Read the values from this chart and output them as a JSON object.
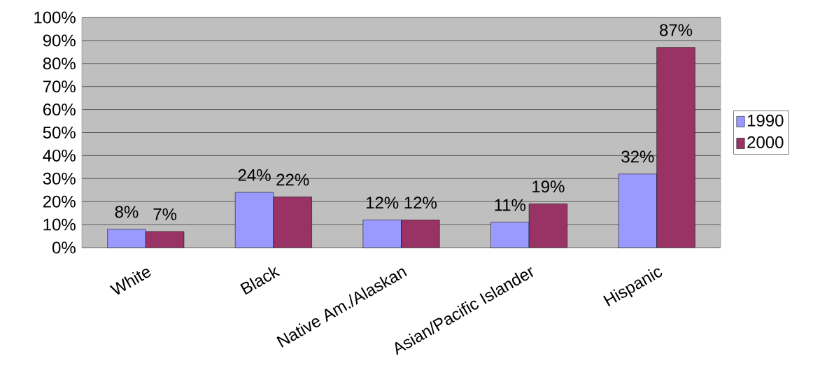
{
  "chart_data": {
    "type": "bar",
    "categories": [
      "White",
      "Black",
      "Native Am./Alaskan",
      "Asian/Pacific Islander",
      "Hispanic"
    ],
    "series": [
      {
        "name": "1990",
        "color": "#9999ff",
        "values": [
          8,
          24,
          12,
          11,
          32
        ],
        "value_labels": [
          "8%",
          "24%",
          "12%",
          "11%",
          "32%"
        ]
      },
      {
        "name": "2000",
        "color": "#993366",
        "values": [
          7,
          22,
          12,
          19,
          87
        ],
        "value_labels": [
          "7%",
          "22%",
          "12%",
          "19%",
          "87%"
        ]
      }
    ],
    "ylim": [
      0,
      100
    ],
    "yticks": [
      {
        "value": 0,
        "label": "0%"
      },
      {
        "value": 10,
        "label": "10%"
      },
      {
        "value": 20,
        "label": "20%"
      },
      {
        "value": 30,
        "label": "30%"
      },
      {
        "value": 40,
        "label": "40%"
      },
      {
        "value": 50,
        "label": "50%"
      },
      {
        "value": 60,
        "label": "60%"
      },
      {
        "value": 70,
        "label": "70%"
      },
      {
        "value": 80,
        "label": "80%"
      },
      {
        "value": 90,
        "label": "90%"
      },
      {
        "value": 100,
        "label": "100%"
      }
    ],
    "grid": "y",
    "legend": "right"
  }
}
